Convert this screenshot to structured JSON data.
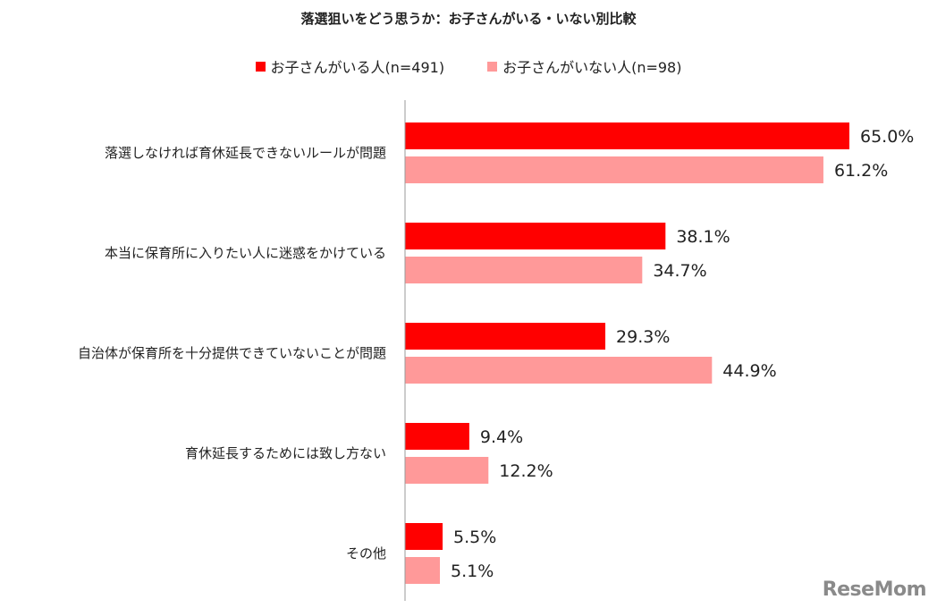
{
  "chart_data": {
    "type": "bar",
    "orientation": "horizontal",
    "title": "落選狙いをどう思うか：お子さんがいる・いない別比較",
    "categories": [
      "落選しなければ育休延長できないルールが問題",
      "本当に保育所に入りたい人に迷惑をかけている",
      "自治体が保育所を十分提供できていないことが問題",
      "育休延長するためには致し方ない",
      "その他"
    ],
    "series": [
      {
        "name": "お子さんがいる人(n=491)",
        "color": "#ff0000",
        "values": [
          65.0,
          38.1,
          29.3,
          9.4,
          5.5
        ],
        "labels": [
          "65.0%",
          "38.1%",
          "29.3%",
          "9.4%",
          "5.5%"
        ]
      },
      {
        "name": "お子さんがいない人(n=98)",
        "color": "#ff9999",
        "values": [
          61.2,
          34.7,
          44.9,
          12.2,
          5.1
        ],
        "labels": [
          "61.2%",
          "34.7%",
          "44.9%",
          "12.2%",
          "5.1%"
        ]
      }
    ],
    "xlim": [
      0,
      65
    ],
    "grid": false,
    "legend_position": "top-center"
  },
  "watermark": "ReseMom"
}
